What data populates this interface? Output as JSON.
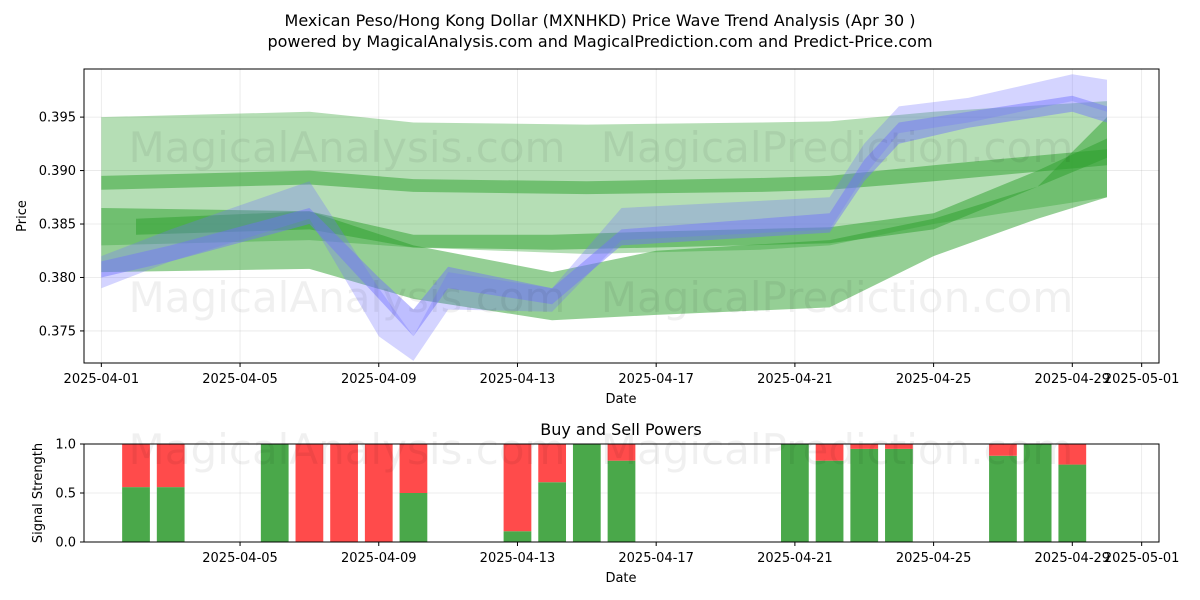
{
  "header": {
    "title": "Mexican Peso/Hong Kong Dollar (MXNHKD) Price Wave Trend Analysis (Apr 30 )",
    "subtitle": "powered by MagicalAnalysis.com and MagicalPrediction.com and Predict-Price.com"
  },
  "watermarks": [
    "MagicalAnalysis.com",
    "MagicalPrediction.com"
  ],
  "colors": {
    "buy": "#4aa84a",
    "sell": "#ff4b4b",
    "green_band": "#2ca02c",
    "blue_band": "#6f6fff"
  },
  "chart_data": [
    {
      "type": "area",
      "ylabel": "Price",
      "xlabel": "Date",
      "ylim": [
        0.372,
        0.3995
      ],
      "xlim": [
        "2025-03-31T12:00",
        "2025-05-01T12:00"
      ],
      "x_ticks": [
        "2025-04-01",
        "2025-04-05",
        "2025-04-09",
        "2025-04-13",
        "2025-04-17",
        "2025-04-21",
        "2025-04-25",
        "2025-04-29",
        "2025-05-01"
      ],
      "y_ticks": [
        "0.375",
        "0.380",
        "0.385",
        "0.390",
        "0.395"
      ],
      "grid": true,
      "green_bands": [
        {
          "x": [
            "2025-04-01",
            "2025-04-07",
            "2025-04-10",
            "2025-04-15",
            "2025-04-20",
            "2025-04-22",
            "2025-04-25",
            "2025-04-30"
          ],
          "upper": [
            0.395,
            0.3955,
            0.3945,
            0.3943,
            0.3945,
            0.3946,
            0.3955,
            0.3965
          ],
          "lower": [
            0.383,
            0.3835,
            0.3828,
            0.3822,
            0.3826,
            0.383,
            0.385,
            0.3875
          ]
        },
        {
          "x": [
            "2025-04-01",
            "2025-04-07",
            "2025-04-10",
            "2025-04-15",
            "2025-04-20",
            "2025-04-22",
            "2025-04-25",
            "2025-04-30"
          ],
          "upper": [
            0.3895,
            0.39,
            0.3892,
            0.389,
            0.3893,
            0.3895,
            0.3905,
            0.392
          ],
          "lower": [
            0.3882,
            0.3887,
            0.388,
            0.3878,
            0.388,
            0.3882,
            0.389,
            0.3905
          ]
        },
        {
          "x": [
            "2025-04-01",
            "2025-04-07",
            "2025-04-10",
            "2025-04-14",
            "2025-04-17",
            "2025-04-22",
            "2025-04-25",
            "2025-04-28",
            "2025-04-30"
          ],
          "upper": [
            0.3865,
            0.3862,
            0.383,
            0.3805,
            0.3825,
            0.3835,
            0.3855,
            0.3885,
            0.395
          ],
          "lower": [
            0.3805,
            0.3808,
            0.378,
            0.376,
            0.3765,
            0.3772,
            0.382,
            0.3855,
            0.3875
          ]
        },
        {
          "x": [
            "2025-04-02",
            "2025-04-07",
            "2025-04-10",
            "2025-04-14",
            "2025-04-17",
            "2025-04-22",
            "2025-04-25",
            "2025-04-28",
            "2025-04-30"
          ],
          "upper": [
            0.3855,
            0.3862,
            0.384,
            0.384,
            0.3843,
            0.3847,
            0.386,
            0.39,
            0.393
          ],
          "lower": [
            0.384,
            0.3845,
            0.3828,
            0.3826,
            0.3828,
            0.3832,
            0.3845,
            0.3885,
            0.3912
          ]
        }
      ],
      "blue_bands": [
        {
          "x": [
            "2025-04-01",
            "2025-04-03",
            "2025-04-07",
            "2025-04-09",
            "2025-04-10",
            "2025-04-11",
            "2025-04-14",
            "2025-04-16",
            "2025-04-22",
            "2025-04-23",
            "2025-04-24",
            "2025-04-26",
            "2025-04-29",
            "2025-04-30"
          ],
          "upper": [
            0.3815,
            0.383,
            0.3865,
            0.38,
            0.377,
            0.381,
            0.379,
            0.3845,
            0.386,
            0.391,
            0.3945,
            0.3955,
            0.397,
            0.396
          ],
          "lower": [
            0.38,
            0.3815,
            0.385,
            0.378,
            0.3745,
            0.379,
            0.3775,
            0.383,
            0.3842,
            0.389,
            0.3925,
            0.394,
            0.3955,
            0.3945
          ]
        },
        {
          "x": [
            "2025-04-01",
            "2025-04-03",
            "2025-04-07",
            "2025-04-09",
            "2025-04-10",
            "2025-04-11",
            "2025-04-14",
            "2025-04-16",
            "2025-04-22",
            "2025-04-23",
            "2025-04-24",
            "2025-04-26",
            "2025-04-29",
            "2025-04-30"
          ],
          "upper": [
            0.382,
            0.3845,
            0.389,
            0.379,
            0.3745,
            0.3805,
            0.379,
            0.3865,
            0.3875,
            0.3925,
            0.396,
            0.3968,
            0.399,
            0.3985
          ],
          "lower": [
            0.379,
            0.3815,
            0.3855,
            0.3745,
            0.3722,
            0.377,
            0.3768,
            0.3835,
            0.3845,
            0.3895,
            0.3935,
            0.3945,
            0.3965,
            0.3955
          ]
        }
      ]
    },
    {
      "type": "bar",
      "title": "Buy and Sell Powers",
      "ylabel": "Signal Strength",
      "xlabel": "Date",
      "ylim": [
        0,
        1.0
      ],
      "y_ticks": [
        "0.0",
        "0.5",
        "1.0"
      ],
      "x_ticks": [
        "2025-04-05",
        "2025-04-09",
        "2025-04-13",
        "2025-04-17",
        "2025-04-21",
        "2025-04-25",
        "2025-04-29",
        "2025-05-01"
      ],
      "grid": true,
      "x": [
        "2025-04-02",
        "2025-04-03",
        "2025-04-06",
        "2025-04-07",
        "2025-04-08",
        "2025-04-09",
        "2025-04-10",
        "2025-04-13",
        "2025-04-14",
        "2025-04-15",
        "2025-04-16",
        "2025-04-21",
        "2025-04-22",
        "2025-04-23",
        "2025-04-24",
        "2025-04-27",
        "2025-04-28",
        "2025-04-29"
      ],
      "series": [
        {
          "name": "Buy",
          "values": [
            0.56,
            0.56,
            1.0,
            0.0,
            0.0,
            0.0,
            0.5,
            0.11,
            0.61,
            1.0,
            0.83,
            1.0,
            0.83,
            0.95,
            0.95,
            0.88,
            1.0,
            0.79
          ]
        },
        {
          "name": "Sell",
          "values": [
            0.44,
            0.44,
            0.0,
            1.0,
            1.0,
            1.0,
            0.5,
            0.89,
            0.39,
            0.0,
            0.17,
            0.0,
            0.17,
            0.05,
            0.05,
            0.12,
            0.0,
            0.21
          ]
        }
      ]
    }
  ]
}
